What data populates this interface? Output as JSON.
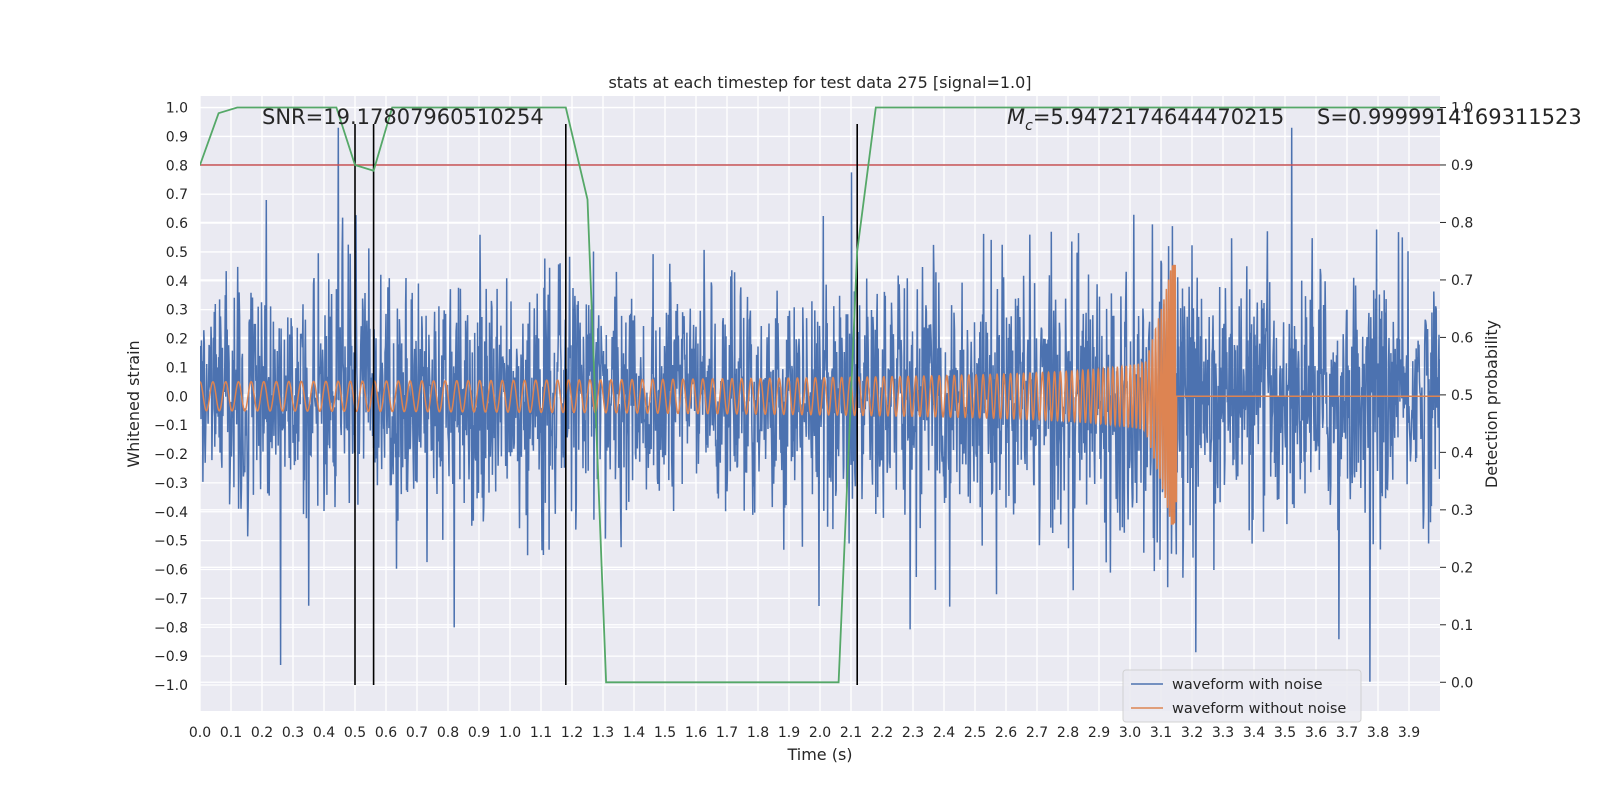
{
  "chart_data": {
    "type": "line",
    "title": "stats at each timestep for test data 275 [signal=1.0]",
    "xlabel": "Time (s)",
    "ylabel": "Whitened strain",
    "y2label": "Detection probability",
    "xlim": [
      0.0,
      4.0
    ],
    "ylim": [
      -1.09,
      1.04
    ],
    "y2lim": [
      -0.05,
      1.02
    ],
    "xticks": [
      "0.0",
      "0.1",
      "0.2",
      "0.3",
      "0.4",
      "0.5",
      "0.6",
      "0.7",
      "0.8",
      "0.9",
      "1.0",
      "1.1",
      "1.2",
      "1.3",
      "1.4",
      "1.5",
      "1.6",
      "1.7",
      "1.8",
      "1.9",
      "2.0",
      "2.1",
      "2.2",
      "2.3",
      "2.4",
      "2.5",
      "2.6",
      "2.7",
      "2.8",
      "2.9",
      "3.0",
      "3.1",
      "3.2",
      "3.3",
      "3.4",
      "3.5",
      "3.6",
      "3.7",
      "3.8",
      "3.9"
    ],
    "yticks": [
      "1.0",
      "0.9",
      "0.8",
      "0.7",
      "0.6",
      "0.5",
      "0.4",
      "0.3",
      "0.2",
      "0.1",
      "0.0",
      "-0.1",
      "-0.2",
      "-0.3",
      "-0.4",
      "-0.5",
      "-0.6",
      "-0.7",
      "-0.8",
      "-0.9",
      "-1.0"
    ],
    "y2ticks": [
      "1.0",
      "0.9",
      "0.8",
      "0.7",
      "0.6",
      "0.5",
      "0.4",
      "0.3",
      "0.2",
      "0.1",
      "0.0"
    ],
    "grid": true,
    "legend_position": "bottom-right",
    "annotations": {
      "snr": "SNR=19.17807960510254",
      "mc_symbol": "M",
      "mc_sub": "c",
      "mc_value": "=5.9472174644470215",
      "s": "S=0.9999914169311523"
    },
    "series": [
      {
        "name": "waveform with noise",
        "color": "#4c72b0",
        "kind": "noisy strain",
        "amplitude_range": [
          -1.0,
          0.93
        ]
      },
      {
        "name": "waveform without noise",
        "color": "#dd8452",
        "kind": "chirp",
        "start_amplitude": 0.05,
        "peak_amplitude": 0.46,
        "merger_time": 3.15,
        "end_value": 0.0
      }
    ],
    "detection_probability": {
      "color": "#55a868",
      "x": [
        0.0,
        0.06,
        0.12,
        0.44,
        0.5,
        0.56,
        0.62,
        1.18,
        1.25,
        1.31,
        2.06,
        2.12,
        2.18,
        4.0
      ],
      "y": [
        0.9,
        0.99,
        1.0,
        1.0,
        0.9,
        0.89,
        1.0,
        1.0,
        0.84,
        0.0,
        0.0,
        0.75,
        1.0,
        1.0
      ]
    },
    "threshold": {
      "value": 0.9,
      "color": "#c44e52"
    },
    "vertical_lines": [
      0.5,
      0.56,
      1.18,
      2.12
    ]
  }
}
